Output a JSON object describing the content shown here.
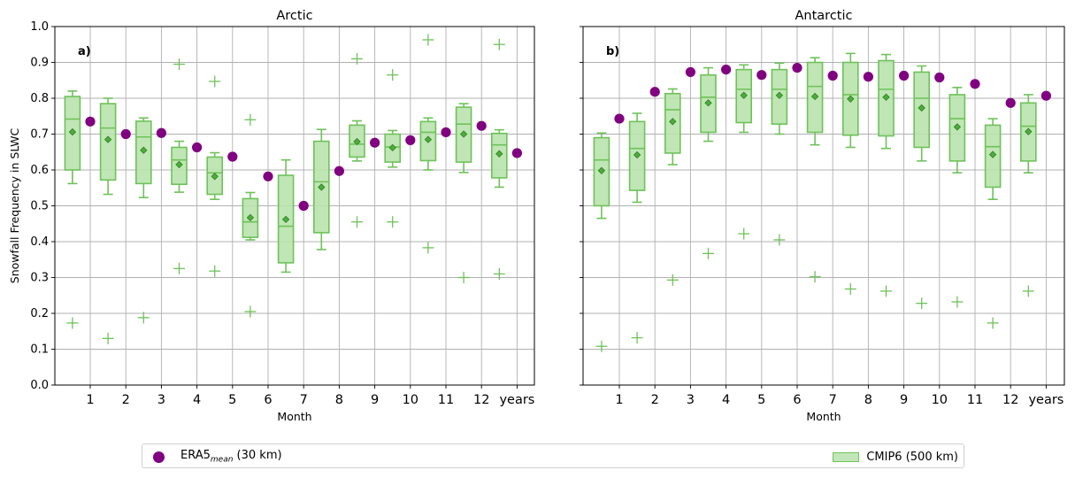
{
  "chart_data": [
    {
      "type": "box",
      "title": "Arctic",
      "panel_label": "a)",
      "xlabel": "Month",
      "ylabel": "Snowfall Frequency in SLWC",
      "ylim": [
        0.0,
        1.0
      ],
      "yticks": [
        "0.0",
        "0.1",
        "0.2",
        "0.3",
        "0.4",
        "0.5",
        "0.6",
        "0.7",
        "0.8",
        "0.9",
        "1.0"
      ],
      "categories": [
        "1",
        "2",
        "3",
        "4",
        "5",
        "6",
        "7",
        "8",
        "9",
        "10",
        "11",
        "12",
        "years"
      ],
      "grid": true,
      "era5_mean": [
        0.735,
        0.7,
        0.703,
        0.663,
        0.637,
        0.582,
        0.5,
        0.597,
        0.676,
        0.683,
        0.705,
        0.723,
        0.647
      ],
      "cmip6": [
        {
          "whisker_low": 0.562,
          "q1": 0.6,
          "median": 0.742,
          "q3": 0.805,
          "whisker_high": 0.82,
          "mean": 0.706,
          "outliers": [
            0.173
          ]
        },
        {
          "whisker_low": 0.532,
          "q1": 0.572,
          "median": 0.717,
          "q3": 0.785,
          "whisker_high": 0.8,
          "mean": 0.685,
          "outliers": [
            0.13
          ]
        },
        {
          "whisker_low": 0.523,
          "q1": 0.562,
          "median": 0.692,
          "q3": 0.736,
          "whisker_high": 0.745,
          "mean": 0.655,
          "outliers": [
            0.188
          ]
        },
        {
          "whisker_low": 0.538,
          "q1": 0.56,
          "median": 0.628,
          "q3": 0.663,
          "whisker_high": 0.68,
          "mean": 0.615,
          "outliers": [
            0.895,
            0.325
          ]
        },
        {
          "whisker_low": 0.518,
          "q1": 0.532,
          "median": 0.592,
          "q3": 0.636,
          "whisker_high": 0.648,
          "mean": 0.582,
          "outliers": [
            0.847,
            0.318
          ]
        },
        {
          "whisker_low": 0.405,
          "q1": 0.412,
          "median": 0.455,
          "q3": 0.52,
          "whisker_high": 0.537,
          "mean": 0.467,
          "outliers": [
            0.74,
            0.205
          ]
        },
        {
          "whisker_low": 0.315,
          "q1": 0.341,
          "median": 0.443,
          "q3": 0.585,
          "whisker_high": 0.628,
          "mean": 0.462,
          "outliers": []
        },
        {
          "whisker_low": 0.378,
          "q1": 0.425,
          "median": 0.567,
          "q3": 0.68,
          "whisker_high": 0.713,
          "mean": 0.552,
          "outliers": []
        },
        {
          "whisker_low": 0.625,
          "q1": 0.636,
          "median": 0.672,
          "q3": 0.725,
          "whisker_high": 0.737,
          "mean": 0.679,
          "outliers": [
            0.91,
            0.455
          ]
        },
        {
          "whisker_low": 0.608,
          "q1": 0.622,
          "median": 0.664,
          "q3": 0.7,
          "whisker_high": 0.71,
          "mean": 0.662,
          "outliers": [
            0.865,
            0.455
          ]
        },
        {
          "whisker_low": 0.6,
          "q1": 0.626,
          "median": 0.705,
          "q3": 0.735,
          "whisker_high": 0.745,
          "mean": 0.685,
          "outliers": [
            0.963,
            0.383
          ]
        },
        {
          "whisker_low": 0.593,
          "q1": 0.622,
          "median": 0.728,
          "q3": 0.775,
          "whisker_high": 0.785,
          "mean": 0.7,
          "outliers": [
            0.3
          ]
        },
        {
          "whisker_low": 0.552,
          "q1": 0.578,
          "median": 0.67,
          "q3": 0.702,
          "whisker_high": 0.712,
          "mean": 0.645,
          "outliers": [
            0.95,
            0.31
          ]
        }
      ]
    },
    {
      "type": "box",
      "title": "Antarctic",
      "panel_label": "b)",
      "xlabel": "Month",
      "ylim": [
        0.0,
        1.0
      ],
      "categories": [
        "1",
        "2",
        "3",
        "4",
        "5",
        "6",
        "7",
        "8",
        "9",
        "10",
        "11",
        "12",
        "years"
      ],
      "grid": true,
      "era5_mean": [
        0.743,
        0.818,
        0.873,
        0.88,
        0.865,
        0.885,
        0.863,
        0.86,
        0.863,
        0.858,
        0.84,
        0.787,
        0.807
      ],
      "cmip6": [
        {
          "whisker_low": 0.465,
          "q1": 0.5,
          "median": 0.628,
          "q3": 0.69,
          "whisker_high": 0.703,
          "mean": 0.598,
          "outliers": [
            0.108
          ]
        },
        {
          "whisker_low": 0.51,
          "q1": 0.543,
          "median": 0.66,
          "q3": 0.735,
          "whisker_high": 0.758,
          "mean": 0.642,
          "outliers": [
            0.132
          ]
        },
        {
          "whisker_low": 0.615,
          "q1": 0.647,
          "median": 0.768,
          "q3": 0.813,
          "whisker_high": 0.826,
          "mean": 0.735,
          "outliers": [
            0.293
          ]
        },
        {
          "whisker_low": 0.68,
          "q1": 0.705,
          "median": 0.803,
          "q3": 0.865,
          "whisker_high": 0.885,
          "mean": 0.787,
          "outliers": [
            0.367
          ]
        },
        {
          "whisker_low": 0.705,
          "q1": 0.732,
          "median": 0.825,
          "q3": 0.88,
          "whisker_high": 0.893,
          "mean": 0.808,
          "outliers": [
            0.422
          ]
        },
        {
          "whisker_low": 0.7,
          "q1": 0.728,
          "median": 0.825,
          "q3": 0.88,
          "whisker_high": 0.898,
          "mean": 0.808,
          "outliers": [
            0.405
          ]
        },
        {
          "whisker_low": 0.67,
          "q1": 0.705,
          "median": 0.833,
          "q3": 0.9,
          "whisker_high": 0.913,
          "mean": 0.805,
          "outliers": [
            0.302
          ]
        },
        {
          "whisker_low": 0.663,
          "q1": 0.697,
          "median": 0.81,
          "q3": 0.9,
          "whisker_high": 0.925,
          "mean": 0.798,
          "outliers": [
            0.268
          ]
        },
        {
          "whisker_low": 0.66,
          "q1": 0.695,
          "median": 0.825,
          "q3": 0.905,
          "whisker_high": 0.922,
          "mean": 0.803,
          "outliers": [
            0.262
          ]
        },
        {
          "whisker_low": 0.625,
          "q1": 0.663,
          "median": 0.8,
          "q3": 0.873,
          "whisker_high": 0.89,
          "mean": 0.773,
          "outliers": [
            0.228
          ]
        },
        {
          "whisker_low": 0.592,
          "q1": 0.625,
          "median": 0.743,
          "q3": 0.81,
          "whisker_high": 0.83,
          "mean": 0.72,
          "outliers": [
            0.232
          ]
        },
        {
          "whisker_low": 0.518,
          "q1": 0.552,
          "median": 0.665,
          "q3": 0.725,
          "whisker_high": 0.743,
          "mean": 0.643,
          "outliers": [
            0.173
          ]
        },
        {
          "whisker_low": 0.592,
          "q1": 0.625,
          "median": 0.722,
          "q3": 0.787,
          "whisker_high": 0.81,
          "mean": 0.707,
          "outliers": [
            0.262
          ]
        }
      ]
    }
  ],
  "legend": {
    "era5_label_prefix": "ERA5",
    "era5_label_subscript": "mean",
    "era5_label_suffix": " (30 km)",
    "cmip6_label": "CMIP6 (500 km)"
  },
  "colors": {
    "era5": "#800080",
    "box_fill": "#b9e3ad",
    "box_edge": "#6ec25a",
    "mean_marker": "#4cae3a",
    "grid": "#b0b0b0"
  }
}
